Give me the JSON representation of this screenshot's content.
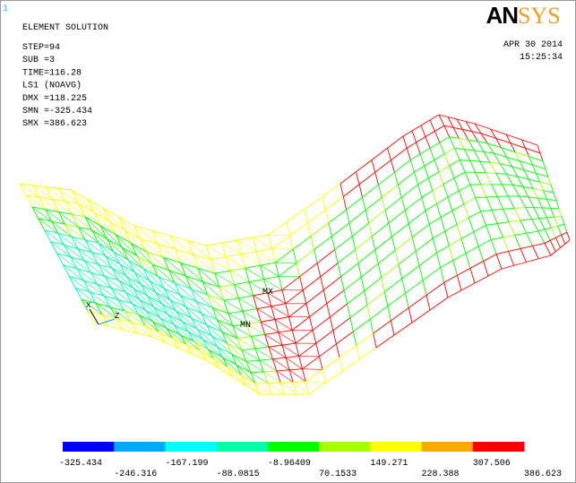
{
  "window_number": "1",
  "info": {
    "title": "ELEMENT SOLUTION",
    "lines": [
      "STEP=94",
      "SUB =3",
      "TIME=116.28",
      "LS1      (NOAVG)",
      "DMX =118.225",
      "SMN =-325.434",
      "SMX =386.623"
    ]
  },
  "logo": {
    "bold": "AN",
    "light": "SYS"
  },
  "date": "APR 30 2014",
  "time": "15:25:34",
  "markers": {
    "mx": "MX",
    "mn": "MN",
    "x_axis": "X",
    "z_axis": "Z"
  },
  "legend": {
    "colors": [
      "#0000ff",
      "#00a8ff",
      "#00ffff",
      "#00ffa8",
      "#00ff00",
      "#a8ff00",
      "#ffff00",
      "#ffa800",
      "#ff0000"
    ],
    "labels": [
      "-325.434",
      "-246.316",
      "-167.199",
      "-88.0815",
      "-8.96409",
      "70.1533",
      "149.271",
      "228.388",
      "307.506",
      "386.623"
    ]
  }
}
